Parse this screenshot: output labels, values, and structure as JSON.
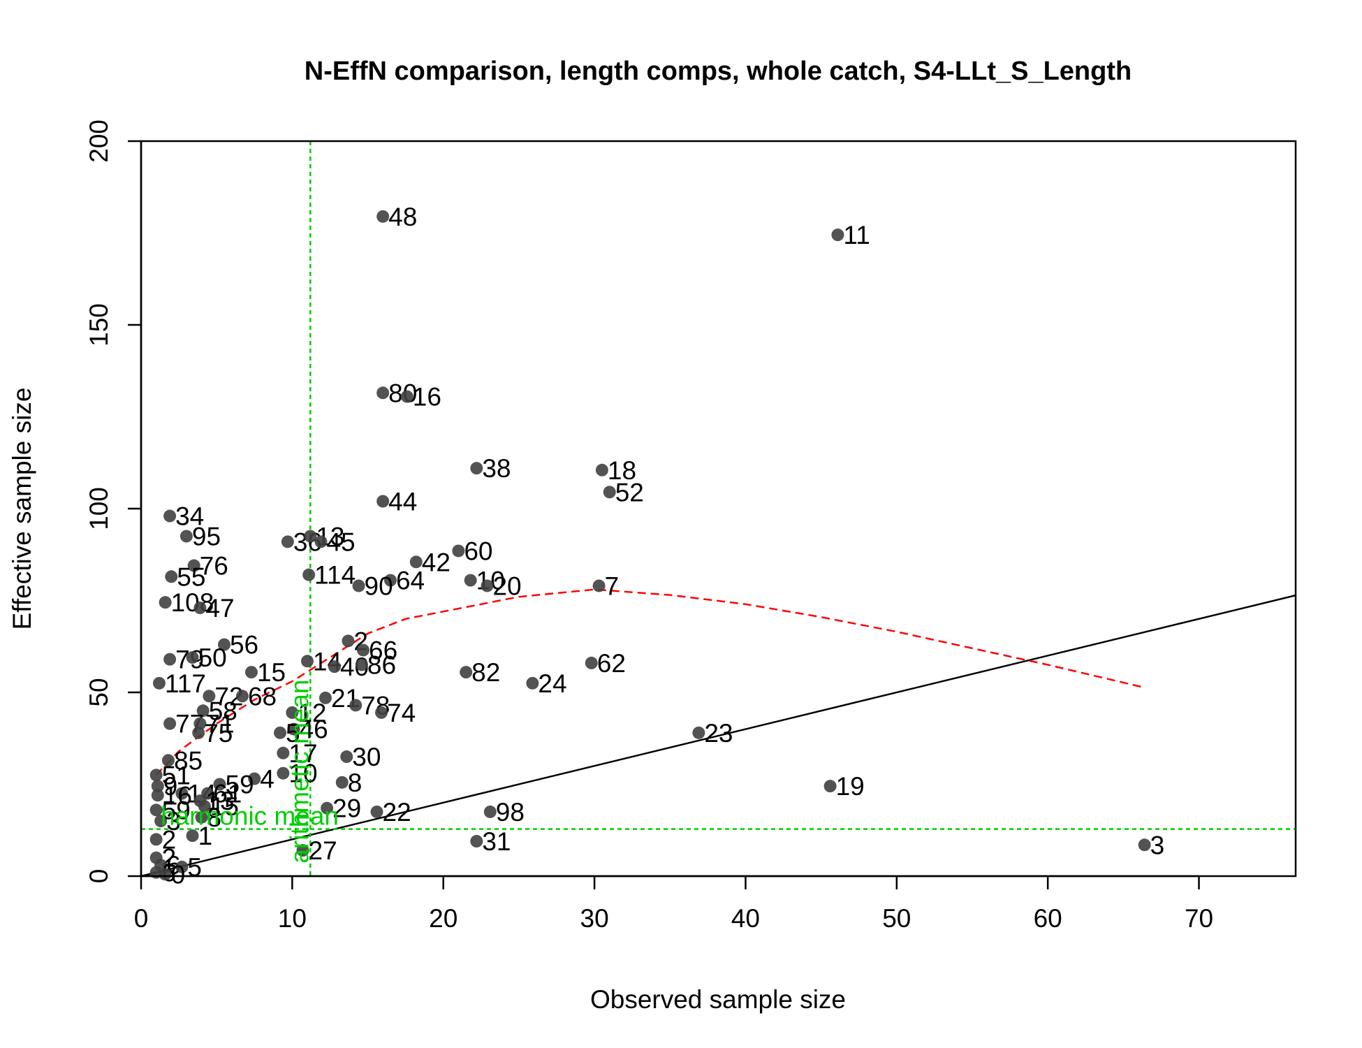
{
  "chart_data": {
    "type": "scatter",
    "title": "N-EffN comparison, length comps, whole catch, S4-LLt_S_Length",
    "xlabel": "Observed sample size",
    "ylabel": "Effective sample size",
    "xlim": [
      0,
      76.4
    ],
    "ylim": [
      0,
      200
    ],
    "xticks": [
      0,
      10,
      20,
      30,
      40,
      50,
      60,
      70
    ],
    "yticks": [
      0,
      50,
      100,
      150,
      200
    ],
    "points": [
      {
        "label": "48",
        "x": 16.0,
        "y": 179.5
      },
      {
        "label": "11",
        "x": 46.1,
        "y": 174.5
      },
      {
        "label": "80",
        "x": 16.0,
        "y": 131.5
      },
      {
        "label": "16",
        "x": 17.6,
        "y": 130.5
      },
      {
        "label": "38",
        "x": 22.2,
        "y": 111.0
      },
      {
        "label": "18",
        "x": 30.5,
        "y": 110.5
      },
      {
        "label": "52",
        "x": 31.0,
        "y": 104.5
      },
      {
        "label": "44",
        "x": 16.0,
        "y": 102.0
      },
      {
        "label": "34",
        "x": 1.9,
        "y": 98.0
      },
      {
        "label": "95",
        "x": 3.0,
        "y": 92.5
      },
      {
        "label": "36",
        "x": 9.7,
        "y": 91.0
      },
      {
        "label": "13",
        "x": 11.2,
        "y": 92.5
      },
      {
        "label": "45",
        "x": 11.9,
        "y": 91.0
      },
      {
        "label": "60",
        "x": 21.0,
        "y": 88.5
      },
      {
        "label": "76",
        "x": 3.5,
        "y": 84.5
      },
      {
        "label": "42",
        "x": 18.2,
        "y": 85.5
      },
      {
        "label": "55",
        "x": 2.0,
        "y": 81.5
      },
      {
        "label": "114",
        "x": 11.1,
        "y": 82.0
      },
      {
        "label": "64",
        "x": 16.5,
        "y": 80.5
      },
      {
        "label": "10",
        "x": 21.8,
        "y": 80.5
      },
      {
        "label": "90",
        "x": 14.4,
        "y": 79.0
      },
      {
        "label": "20",
        "x": 22.9,
        "y": 79.0
      },
      {
        "label": "7",
        "x": 30.3,
        "y": 79.0
      },
      {
        "label": "108",
        "x": 1.6,
        "y": 74.5
      },
      {
        "label": "47",
        "x": 3.9,
        "y": 73.0
      },
      {
        "label": "2",
        "x": 13.7,
        "y": 64.0
      },
      {
        "label": "56",
        "x": 5.5,
        "y": 63.0
      },
      {
        "label": "66",
        "x": 14.7,
        "y": 61.5
      },
      {
        "label": "79",
        "x": 1.9,
        "y": 59.0
      },
      {
        "label": "50",
        "x": 3.4,
        "y": 59.5
      },
      {
        "label": "14",
        "x": 11.0,
        "y": 58.5
      },
      {
        "label": "40",
        "x": 12.8,
        "y": 57.0
      },
      {
        "label": "86",
        "x": 14.6,
        "y": 57.5
      },
      {
        "label": "62",
        "x": 29.8,
        "y": 58.0
      },
      {
        "label": "15",
        "x": 7.3,
        "y": 55.5
      },
      {
        "label": "82",
        "x": 21.5,
        "y": 55.5
      },
      {
        "label": "117",
        "x": 1.2,
        "y": 52.5
      },
      {
        "label": "24",
        "x": 25.9,
        "y": 52.5
      },
      {
        "label": "72",
        "x": 4.5,
        "y": 49.0
      },
      {
        "label": "68",
        "x": 6.7,
        "y": 49.0
      },
      {
        "label": "21",
        "x": 12.2,
        "y": 48.5
      },
      {
        "label": "78",
        "x": 14.2,
        "y": 46.5
      },
      {
        "label": "58",
        "x": 4.1,
        "y": 45.0
      },
      {
        "label": "74",
        "x": 15.9,
        "y": 44.5
      },
      {
        "label": "12",
        "x": 10.0,
        "y": 44.5
      },
      {
        "label": "77",
        "x": 1.9,
        "y": 41.5
      },
      {
        "label": "71",
        "x": 3.9,
        "y": 41.5
      },
      {
        "label": "46",
        "x": 10.1,
        "y": 40.0
      },
      {
        "label": "75",
        "x": 3.8,
        "y": 39.0
      },
      {
        "label": "5",
        "x": 9.2,
        "y": 39.0
      },
      {
        "label": "23",
        "x": 36.9,
        "y": 39.0
      },
      {
        "label": "17",
        "x": 9.4,
        "y": 33.5
      },
      {
        "label": "30",
        "x": 13.6,
        "y": 32.5
      },
      {
        "label": "85",
        "x": 1.8,
        "y": 31.5
      },
      {
        "label": "10",
        "x": 9.4,
        "y": 28.0
      },
      {
        "label": "51",
        "x": 1.0,
        "y": 27.5
      },
      {
        "label": "4",
        "x": 7.5,
        "y": 26.5
      },
      {
        "label": "9",
        "x": 1.1,
        "y": 24.5
      },
      {
        "label": "59",
        "x": 5.2,
        "y": 25.0
      },
      {
        "label": "8",
        "x": 13.3,
        "y": 25.5
      },
      {
        "label": "19",
        "x": 45.6,
        "y": 24.5
      },
      {
        "label": "14",
        "x": 2.7,
        "y": 22.5
      },
      {
        "label": "61",
        "x": 4.4,
        "y": 22.5
      },
      {
        "label": "16",
        "x": 1.1,
        "y": 22.0
      },
      {
        "label": "13",
        "x": 3.9,
        "y": 20.5
      },
      {
        "label": "15",
        "x": 4.2,
        "y": 19.0
      },
      {
        "label": "29",
        "x": 12.3,
        "y": 18.5
      },
      {
        "label": "22",
        "x": 15.6,
        "y": 17.5
      },
      {
        "label": "98",
        "x": 23.1,
        "y": 17.5
      },
      {
        "label": "59",
        "x": 1.0,
        "y": 18.0
      },
      {
        "label": "3",
        "x": 1.3,
        "y": 15.0
      },
      {
        "label": "8",
        "x": 4.0,
        "y": 16.0
      },
      {
        "label": "2",
        "x": 1.0,
        "y": 10.0
      },
      {
        "label": "1",
        "x": 3.4,
        "y": 11.0
      },
      {
        "label": "31",
        "x": 22.2,
        "y": 9.5
      },
      {
        "label": "3",
        "x": 66.4,
        "y": 8.5
      },
      {
        "label": "27",
        "x": 10.7,
        "y": 7.0
      },
      {
        "label": "2",
        "x": 1.0,
        "y": 5.0
      },
      {
        "label": "6",
        "x": 1.3,
        "y": 3.0
      },
      {
        "label": "5",
        "x": 2.7,
        "y": 2.5
      },
      {
        "label": "6",
        "x": 1.0,
        "y": 1.0
      },
      {
        "label": "0",
        "x": 1.6,
        "y": 0.5
      }
    ],
    "reference_line": {
      "slope": 1,
      "intercept": 0
    },
    "smoother": {
      "x": [
        1.0,
        2.5,
        5.0,
        7.5,
        10.0,
        12.5,
        15.0,
        17.5,
        20.0,
        25.0,
        30.0,
        35.0,
        40.0,
        45.0,
        50.0,
        55.0,
        60.0,
        66.2
      ],
      "y": [
        27.5,
        34.0,
        41.5,
        48.0,
        53.0,
        59.5,
        66.0,
        70.0,
        72.0,
        76.0,
        78.0,
        76.5,
        74.0,
        70.5,
        66.5,
        62.0,
        57.5,
        51.5
      ]
    },
    "arithmetic_mean": {
      "label": "arithmetic mean",
      "x": 11.2
    },
    "harmonic_mean": {
      "label": "harmonic mean",
      "y": 12.8
    },
    "colors": {
      "points": "#404040",
      "reference": "#000000",
      "smoother": "#ff0000",
      "means": "#00cd00"
    }
  }
}
